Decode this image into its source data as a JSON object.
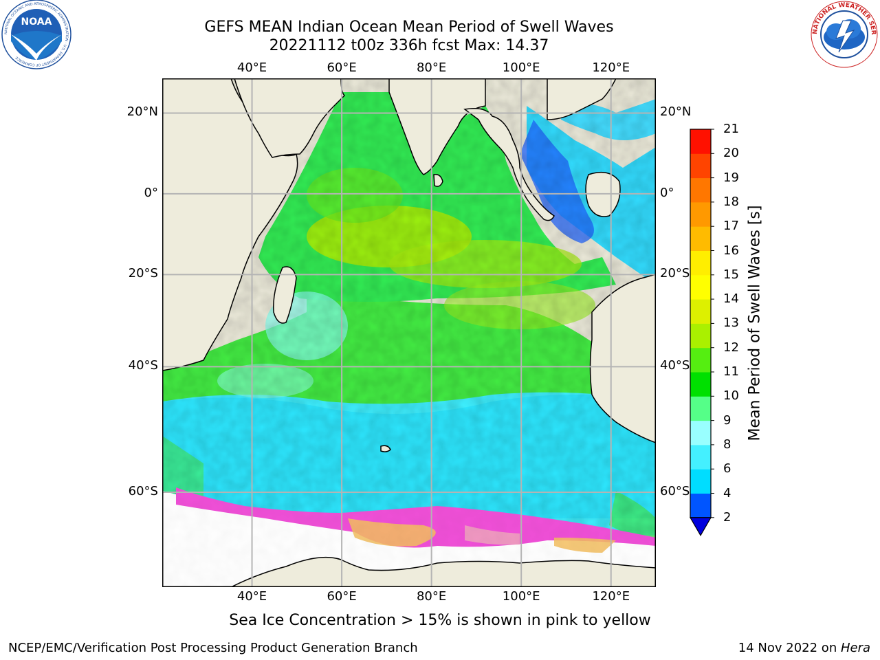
{
  "title_line1": "GEFS MEAN Indian Ocean Mean Period of Swell Waves",
  "title_line2": "20221112 t00z 336h fcst   Max: 14.37",
  "logos": {
    "left": {
      "name": "noaa-logo",
      "text": "NOAA",
      "ring_text": "NATIONAL OCEANIC AND ATMOSPHERIC ADMINISTRATION · U.S. DEPARTMENT OF COMMERCE"
    },
    "right": {
      "name": "nws-logo",
      "ring_text": "NATIONAL WEATHER SERVICE"
    }
  },
  "map": {
    "lon_range": [
      20,
      130
    ],
    "lat_range": [
      -70,
      28
    ],
    "lon_ticks": [
      {
        "value": 40,
        "label": "40°E"
      },
      {
        "value": 60,
        "label": "60°E"
      },
      {
        "value": 80,
        "label": "80°E"
      },
      {
        "value": 100,
        "label": "100°E"
      },
      {
        "value": 120,
        "label": "120°E"
      }
    ],
    "lat_ticks": [
      {
        "value": 20,
        "label": "20°N"
      },
      {
        "value": 0,
        "label": "0°"
      },
      {
        "value": -20,
        "label": "20°S"
      },
      {
        "value": -40,
        "label": "40°S"
      },
      {
        "value": -60,
        "label": "60°S"
      }
    ],
    "gridlines": true,
    "land_color": "#eeecdc",
    "ocean_field": "mean swell period (s)",
    "sea_ice_colors": [
      "#f050d8",
      "#f0a0c0",
      "#f5c060"
    ]
  },
  "colorbar": {
    "title": "Mean Period of Swell Waves [s]",
    "levels": [
      2,
      4,
      6,
      8,
      9,
      10,
      11,
      12,
      13,
      14,
      15,
      16,
      17,
      18,
      19,
      20,
      21
    ],
    "colors": [
      "#0055ff",
      "#00ddff",
      "#44f0ff",
      "#99ffff",
      "#55ff88",
      "#00e000",
      "#55ee11",
      "#aaf000",
      "#ddf000",
      "#ffff00",
      "#ffee00",
      "#ffbb00",
      "#ff9900",
      "#ff7700",
      "#ff4400",
      "#ff1100"
    ],
    "under_color": "#0000dd"
  },
  "note": "Sea Ice Concentration > 15% is shown in pink to yellow",
  "footer": {
    "left": "NCEP/EMC/Verification Post Processing Product Generation Branch",
    "right_date": "14 Nov 2022 on ",
    "right_host": "Hera"
  }
}
